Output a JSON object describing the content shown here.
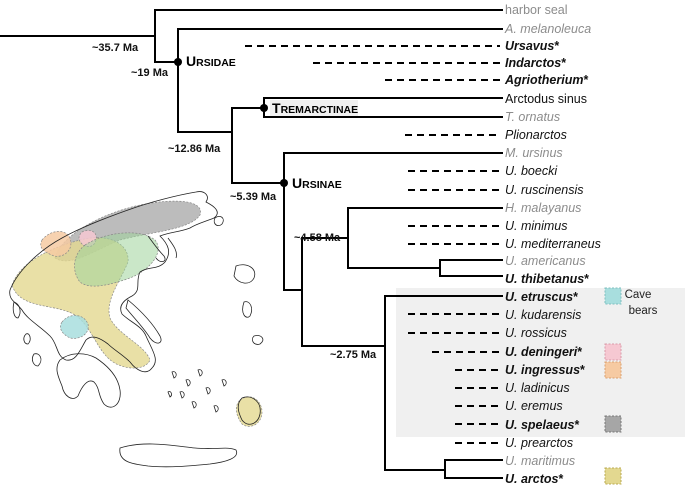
{
  "taxa": [
    {
      "id": "harbor-seal",
      "name": "harbor seal",
      "rest": "",
      "italic": false,
      "bold": false,
      "grey": true
    },
    {
      "id": "a-melanoleuca",
      "name": "A. melanoleuca",
      "rest": "",
      "italic": true,
      "bold": false,
      "grey": true
    },
    {
      "id": "ursavus",
      "name": "Ursavus",
      "rest": "*",
      "italic": true,
      "bold": true,
      "grey": false
    },
    {
      "id": "indarctos",
      "name": "Indarctos",
      "rest": "*",
      "italic": true,
      "bold": true,
      "grey": false
    },
    {
      "id": "agriotherium",
      "name": "Agriotherium",
      "rest": "*",
      "italic": true,
      "bold": true,
      "grey": false
    },
    {
      "id": "arctodus-sinus",
      "name": "Arctodus sinus",
      "rest": "",
      "italic": false,
      "bold": false,
      "grey": false
    },
    {
      "id": "t-ornatus",
      "name": "T. ornatus",
      "rest": "",
      "italic": true,
      "bold": false,
      "grey": true
    },
    {
      "id": "plionarctos",
      "name": "Plionarctos",
      "rest": "",
      "italic": true,
      "bold": false,
      "grey": false
    },
    {
      "id": "m-ursinus",
      "name": "M. ursinus",
      "rest": "",
      "italic": true,
      "bold": false,
      "grey": true
    },
    {
      "id": "u-boecki",
      "name": "U. boecki",
      "rest": "",
      "italic": true,
      "bold": false,
      "grey": false
    },
    {
      "id": "u-ruscinensis",
      "name": "U. ruscinensis",
      "rest": "",
      "italic": true,
      "bold": false,
      "grey": false
    },
    {
      "id": "h-malayanus",
      "name": "H. malayanus",
      "rest": "",
      "italic": true,
      "bold": false,
      "grey": true
    },
    {
      "id": "u-minimus",
      "name": "U. minimus",
      "rest": "",
      "italic": true,
      "bold": false,
      "grey": false
    },
    {
      "id": "u-mediterraneus",
      "name": "U. mediterraneus",
      "rest": "",
      "italic": true,
      "bold": false,
      "grey": false
    },
    {
      "id": "u-americanus",
      "name": "U. americanus",
      "rest": "",
      "italic": true,
      "bold": false,
      "grey": true
    },
    {
      "id": "u-thibetanus",
      "name": "U. thibetanus",
      "rest": "*",
      "italic": true,
      "bold": true,
      "grey": false
    },
    {
      "id": "u-etruscus",
      "name": "U. etruscus",
      "rest": "*",
      "italic": true,
      "bold": true,
      "grey": false
    },
    {
      "id": "u-kudarensis",
      "name": "U. kudarensis",
      "rest": "",
      "italic": true,
      "bold": false,
      "grey": false
    },
    {
      "id": "u-rossicus",
      "name": "U. rossicus",
      "rest": "",
      "italic": true,
      "bold": false,
      "grey": false
    },
    {
      "id": "u-deningeri",
      "name": "U. deningeri",
      "rest": "*",
      "italic": true,
      "bold": true,
      "grey": false
    },
    {
      "id": "u-ingressus",
      "name": "U. ingressus",
      "rest": "*",
      "italic": true,
      "bold": true,
      "grey": false
    },
    {
      "id": "u-ladinicus",
      "name": "U. ladinicus",
      "rest": "",
      "italic": true,
      "bold": false,
      "grey": false
    },
    {
      "id": "u-eremus",
      "name": "U. eremus",
      "rest": "",
      "italic": true,
      "bold": false,
      "grey": false
    },
    {
      "id": "u-spelaeus",
      "name": "U. spelaeus",
      "rest": "*",
      "italic": true,
      "bold": true,
      "grey": false
    },
    {
      "id": "u-prearctos",
      "name": "U. prearctos",
      "rest": "",
      "italic": true,
      "bold": false,
      "grey": false
    },
    {
      "id": "u-maritimus",
      "name": "U. maritimus",
      "rest": "",
      "italic": true,
      "bold": false,
      "grey": true
    },
    {
      "id": "u-arctos",
      "name": "U. arctos",
      "rest": "*",
      "italic": true,
      "bold": true,
      "grey": false
    }
  ],
  "clades": {
    "ursidae": {
      "cap": "U",
      "rest": "RSIDAE"
    },
    "tremarctinae": {
      "cap": "T",
      "rest": "REMARCTINAE"
    },
    "ursinae": {
      "cap": "U",
      "rest": "RSINAE"
    }
  },
  "ages": {
    "root": "~35.7 Ma",
    "ursidae": "~19 Ma",
    "tremarctinae": "~12.86 Ma",
    "ursinae": "~5.39 Ma",
    "malayanus": "~4.58 Ma",
    "cave": "~2.75 Ma"
  },
  "legend": {
    "cave_line1": "Cave",
    "cave_line2": "bears"
  },
  "colors": {
    "etruscus": "#a8dede",
    "deningeri": "#f6c8d2",
    "ingressus": "#f6caa2",
    "spelaeus": "#a6a6a6",
    "arctos": "#e3d890",
    "highlight": "#f0f0f0",
    "grey_text": "#8c8c8c"
  }
}
